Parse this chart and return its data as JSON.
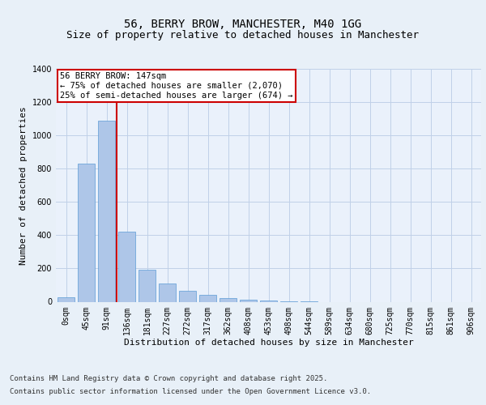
{
  "title_line1": "56, BERRY BROW, MANCHESTER, M40 1GG",
  "title_line2": "Size of property relative to detached houses in Manchester",
  "xlabel": "Distribution of detached houses by size in Manchester",
  "ylabel": "Number of detached properties",
  "categories": [
    "0sqm",
    "45sqm",
    "91sqm",
    "136sqm",
    "181sqm",
    "227sqm",
    "272sqm",
    "317sqm",
    "362sqm",
    "408sqm",
    "453sqm",
    "498sqm",
    "544sqm",
    "589sqm",
    "634sqm",
    "680sqm",
    "725sqm",
    "770sqm",
    "815sqm",
    "861sqm",
    "906sqm"
  ],
  "values": [
    25,
    830,
    1090,
    420,
    190,
    110,
    65,
    40,
    20,
    10,
    5,
    2,
    1,
    0,
    0,
    0,
    0,
    0,
    0,
    0,
    0
  ],
  "bar_color": "#aec6e8",
  "bar_edge_color": "#5b9bd5",
  "vline_color": "#cc0000",
  "ylim": [
    0,
    1400
  ],
  "yticks": [
    0,
    200,
    400,
    600,
    800,
    1000,
    1200,
    1400
  ],
  "annotation_text": "56 BERRY BROW: 147sqm\n← 75% of detached houses are smaller (2,070)\n25% of semi-detached houses are larger (674) →",
  "annotation_box_color": "#ffffff",
  "annotation_box_edge": "#cc0000",
  "footnote_line1": "Contains HM Land Registry data © Crown copyright and database right 2025.",
  "footnote_line2": "Contains public sector information licensed under the Open Government Licence v3.0.",
  "bg_color": "#e8f0f8",
  "plot_bg_color": "#eaf1fb",
  "grid_color": "#c0d0e8",
  "title_fontsize": 10,
  "subtitle_fontsize": 9,
  "axis_label_fontsize": 8,
  "tick_fontsize": 7,
  "footnote_fontsize": 6.5,
  "annotation_fontsize": 7.5
}
